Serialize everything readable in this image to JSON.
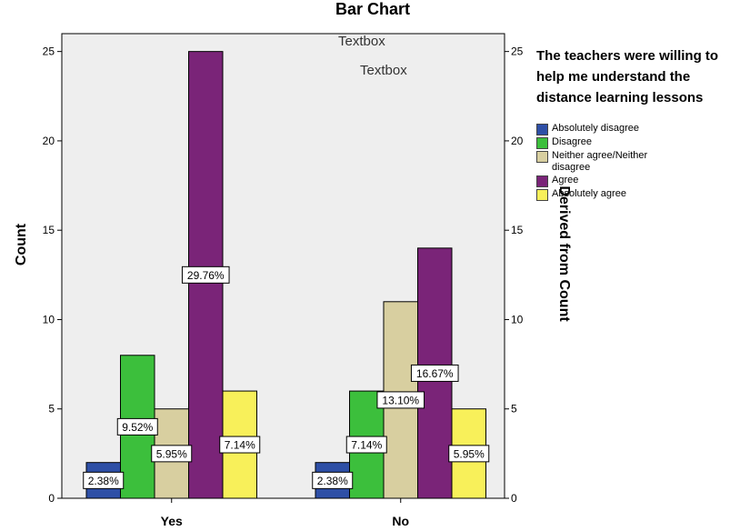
{
  "chart_data": {
    "type": "bar",
    "title": "Bar Chart",
    "textboxes": [
      "Textbox",
      "Textbox"
    ],
    "categories": [
      "Yes",
      "No"
    ],
    "ylabel": "Count",
    "ylabel_right": "Derived from Count",
    "ylim": [
      0,
      26
    ],
    "yticks": [
      0,
      5,
      10,
      15,
      20,
      25
    ],
    "legend_title": "The teachers were willing to help me understand the distance learning lessons",
    "legend_position": "right",
    "series": [
      {
        "name": "Absolutely disagree",
        "color": "#2e4fa6",
        "values": [
          2,
          2
        ],
        "labels": [
          "2.38%",
          "2.38%"
        ]
      },
      {
        "name": "Disagree",
        "color": "#3cbf3c",
        "values": [
          8,
          6
        ],
        "labels": [
          "9.52%",
          "7.14%"
        ]
      },
      {
        "name": "Neither agree/Neither disagree",
        "color": "#d8cfa0",
        "values": [
          5,
          11
        ],
        "labels": [
          "5.95%",
          "13.10%"
        ]
      },
      {
        "name": "Agree",
        "color": "#7a2478",
        "values": [
          25,
          14
        ],
        "labels": [
          "29.76%",
          "16.67%"
        ]
      },
      {
        "name": "Absolutely agree",
        "color": "#f8f05a",
        "values": [
          6,
          5
        ],
        "labels": [
          "7.14%",
          "5.95%"
        ]
      }
    ]
  }
}
